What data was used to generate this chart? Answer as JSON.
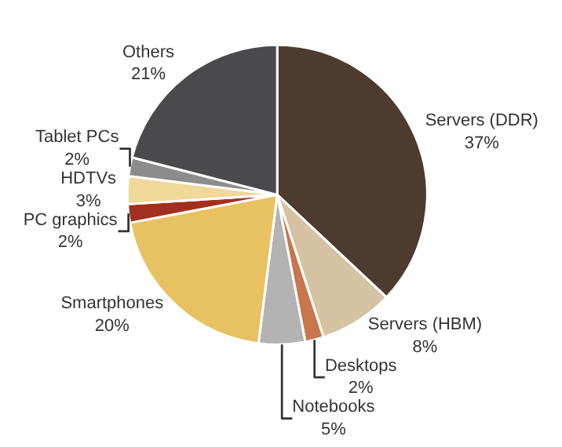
{
  "chart_data": {
    "type": "pie",
    "categories": [
      "Servers (DDR)",
      "Servers (HBM)",
      "Desktops",
      "Notebooks",
      "Smartphones",
      "PC graphics",
      "HDTVs",
      "Tablet PCs",
      "Others"
    ],
    "values": [
      37,
      8,
      2,
      5,
      20,
      2,
      3,
      2,
      21
    ],
    "value_labels": [
      "37%",
      "8%",
      "2%",
      "5%",
      "20%",
      "2%",
      "3%",
      "2%",
      "21%"
    ],
    "colors": [
      "#4e3b30",
      "#d6c3a3",
      "#c8764e",
      "#b3b3b3",
      "#e8c262",
      "#a3301f",
      "#f1d99b",
      "#8c8c8c",
      "#4a4a4c"
    ],
    "legend": false
  }
}
